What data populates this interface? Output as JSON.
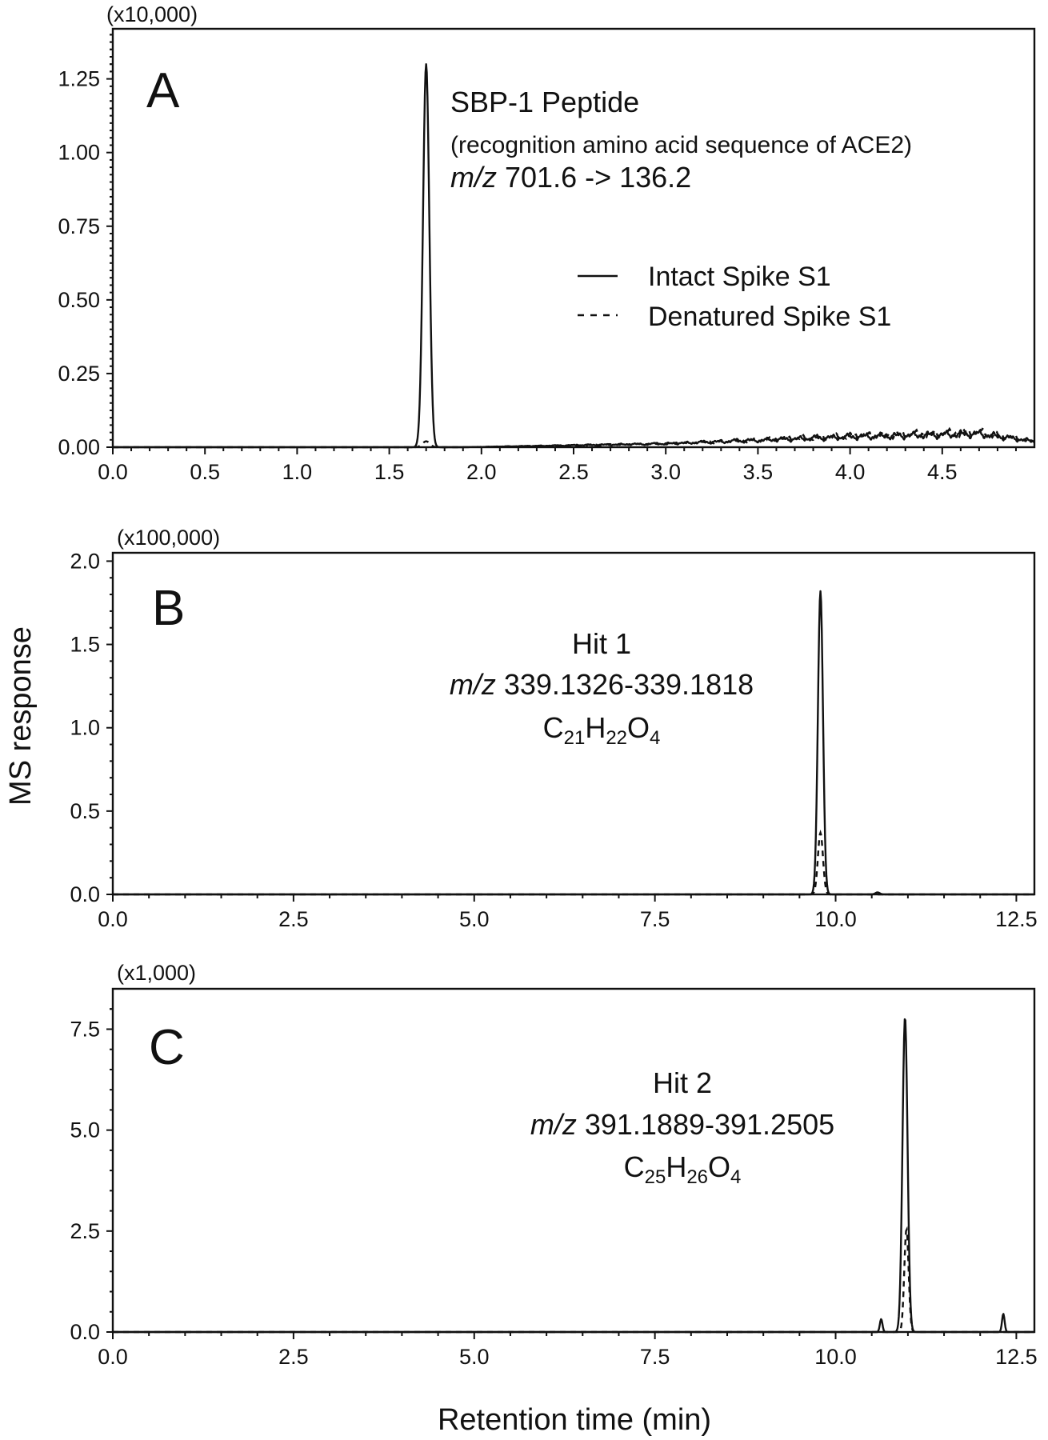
{
  "figure": {
    "ylabel": "MS response",
    "xlabel": "Retention time (min)"
  },
  "legend": {
    "intact": "Intact Spike S1",
    "denatured": "Denatured Spike S1",
    "placement": "right-middle of panel A"
  },
  "colors": {
    "ink": "#111111",
    "background": "#ffffff"
  },
  "chart_data": [
    {
      "type": "line",
      "panel": "A",
      "multiplier": "(x10,000)",
      "annotation": {
        "title": "SBP-1 Peptide",
        "subtitle": "(recognition amino acid sequence of ACE2)",
        "mz_prefix": "m/z",
        "mz_value": " 701.6 -> 136.2"
      },
      "xlim": [
        0,
        5.0
      ],
      "ylim": [
        0,
        1.42
      ],
      "xticks": [
        "0.0",
        "0.5",
        "1.0",
        "1.5",
        "2.0",
        "2.5",
        "3.0",
        "3.5",
        "4.0",
        "4.5"
      ],
      "yticks": [
        "0.00",
        "0.25",
        "0.50",
        "0.75",
        "1.00",
        "1.25"
      ],
      "series": [
        {
          "name": "Intact Spike S1",
          "style": "solid",
          "peaks": [
            {
              "rt": 1.7,
              "height": 1.3,
              "width": 0.017
            }
          ],
          "baseline_drift": [
            [
              0,
              0
            ],
            [
              1.9,
              0
            ],
            [
              3.0,
              0.012
            ],
            [
              4.0,
              0.035
            ],
            [
              4.7,
              0.045
            ],
            [
              5.0,
              0.02
            ]
          ]
        },
        {
          "name": "Denatured Spike S1",
          "style": "dashed",
          "peaks": [
            {
              "rt": 1.7,
              "height": 0.02,
              "width": 0.02
            }
          ],
          "baseline_drift": [
            [
              0,
              0
            ],
            [
              1.9,
              0
            ],
            [
              3.0,
              0.012
            ],
            [
              4.0,
              0.038
            ],
            [
              4.7,
              0.05
            ],
            [
              5.0,
              0.02
            ]
          ]
        }
      ]
    },
    {
      "type": "line",
      "panel": "B",
      "multiplier": "(x100,000)",
      "annotation": {
        "title": "Hit 1",
        "mz_prefix": "m/z",
        "mz_value": " 339.1326-339.1818",
        "formula": [
          "C",
          "21",
          "H",
          "22",
          "O",
          "4"
        ]
      },
      "xlim": [
        0,
        12.75
      ],
      "ylim": [
        0,
        2.05
      ],
      "xticks": [
        "0.0",
        "2.5",
        "5.0",
        "7.5",
        "10.0",
        "12.5"
      ],
      "yticks": [
        "0.0",
        "0.5",
        "1.0",
        "1.5",
        "2.0"
      ],
      "series": [
        {
          "name": "Intact Spike S1",
          "style": "solid",
          "peaks": [
            {
              "rt": 9.79,
              "height": 1.82,
              "width": 0.035
            },
            {
              "rt": 10.58,
              "height": 0.012,
              "width": 0.03
            }
          ]
        },
        {
          "name": "Denatured Spike S1",
          "style": "dashed",
          "peaks": [
            {
              "rt": 9.79,
              "height": 0.37,
              "width": 0.035
            }
          ]
        }
      ]
    },
    {
      "type": "line",
      "panel": "C",
      "multiplier": "(x1,000)",
      "annotation": {
        "title": "Hit 2",
        "mz_prefix": "m/z",
        "mz_value": " 391.1889-391.2505",
        "formula": [
          "C",
          "25",
          "H",
          "26",
          "O",
          "4"
        ]
      },
      "xlim": [
        0,
        12.75
      ],
      "ylim": [
        0,
        8.5
      ],
      "xticks": [
        "0.0",
        "2.5",
        "5.0",
        "7.5",
        "10.0",
        "12.5"
      ],
      "yticks": [
        "0.0",
        "2.5",
        "5.0",
        "7.5"
      ],
      "series": [
        {
          "name": "Intact Spike S1",
          "style": "solid",
          "peaks": [
            {
              "rt": 10.63,
              "height": 0.32,
              "width": 0.018
            },
            {
              "rt": 10.96,
              "height": 7.8,
              "width": 0.035
            },
            {
              "rt": 12.32,
              "height": 0.45,
              "width": 0.018
            }
          ]
        },
        {
          "name": "Denatured Spike S1",
          "style": "dashed",
          "peaks": [
            {
              "rt": 10.98,
              "height": 2.55,
              "width": 0.03
            }
          ]
        }
      ]
    }
  ]
}
